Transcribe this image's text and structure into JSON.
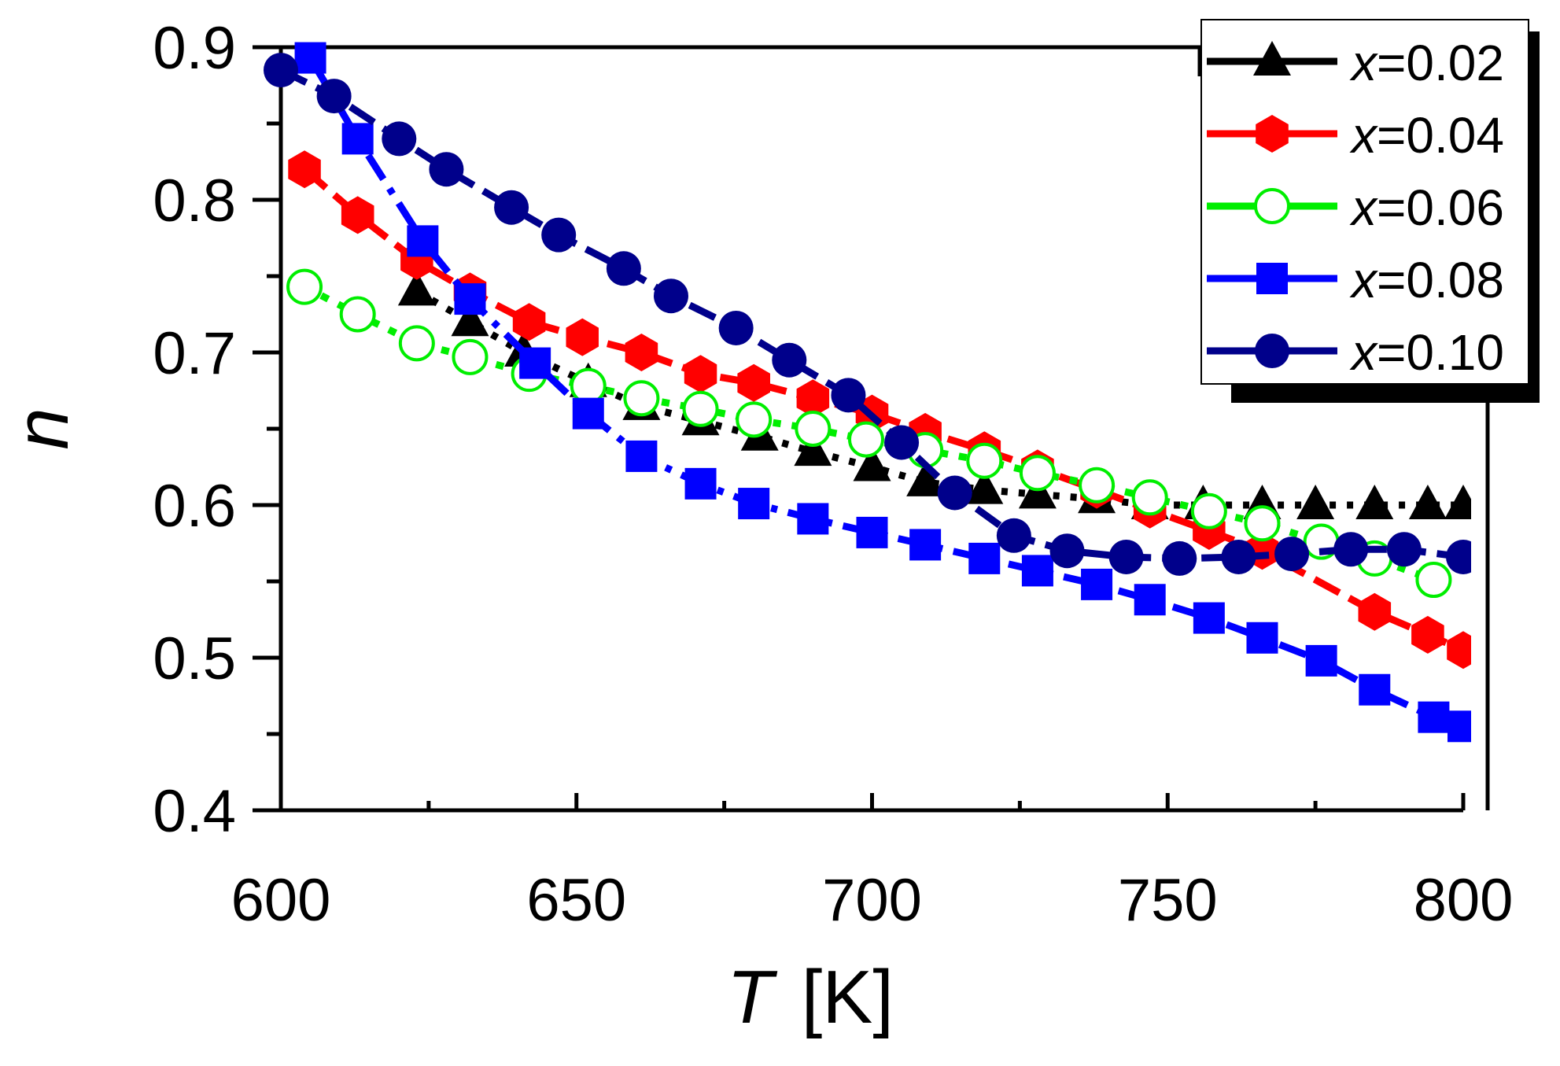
{
  "chart_data": {
    "type": "line",
    "title": "",
    "xlabel_var": "T",
    "xlabel_unit": "[K]",
    "ylabel": "n",
    "xlim": [
      600,
      800
    ],
    "ylim": [
      0.4,
      0.9
    ],
    "xticks": [
      "600",
      "650",
      "700",
      "750",
      "800"
    ],
    "yticks": [
      "0.4",
      "0.5",
      "0.6",
      "0.7",
      "0.8",
      "0.9"
    ],
    "legend_position": "top-right",
    "series": [
      {
        "name": "x=0.02",
        "var": "x",
        "value_label": "=0.02",
        "color": "#000000",
        "marker": "triangle",
        "dash": "8 14",
        "x": [
          623,
          632,
          641,
          652,
          661,
          671,
          681,
          690,
          700,
          709,
          719,
          728,
          738,
          747,
          756,
          766,
          775,
          785,
          794,
          800
        ],
        "y": [
          0.74,
          0.72,
          0.7,
          0.68,
          0.665,
          0.655,
          0.645,
          0.635,
          0.625,
          0.615,
          0.61,
          0.607,
          0.604,
          0.6,
          0.6,
          0.6,
          0.6,
          0.6,
          0.6,
          0.6
        ]
      },
      {
        "name": "x=0.04",
        "var": "x",
        "value_label": "=0.04",
        "color": "#ff0000",
        "marker": "hexagon",
        "dash": "36 14",
        "x": [
          604,
          613,
          623,
          632,
          642,
          651,
          661,
          671,
          680,
          690,
          700,
          709,
          719,
          728,
          738,
          747,
          757,
          766,
          785,
          794,
          800
        ],
        "y": [
          0.82,
          0.79,
          0.76,
          0.74,
          0.72,
          0.71,
          0.7,
          0.686,
          0.68,
          0.67,
          0.66,
          0.648,
          0.636,
          0.624,
          0.61,
          0.597,
          0.583,
          0.57,
          0.53,
          0.515,
          0.505
        ]
      },
      {
        "name": "x=0.06",
        "var": "x",
        "value_label": "=0.06",
        "color": "#00ee00",
        "marker": "open-circle",
        "dash": "10 14",
        "x": [
          604,
          613,
          623,
          632,
          642,
          652,
          661,
          671,
          680,
          690,
          699,
          709,
          719,
          728,
          738,
          747,
          757,
          766,
          776,
          785,
          795
        ],
        "y": [
          0.743,
          0.725,
          0.706,
          0.697,
          0.686,
          0.678,
          0.67,
          0.663,
          0.656,
          0.65,
          0.643,
          0.636,
          0.629,
          0.621,
          0.613,
          0.605,
          0.596,
          0.588,
          0.576,
          0.565,
          0.551
        ]
      },
      {
        "name": "x=0.08",
        "var": "x",
        "value_label": "=0.08",
        "color": "#0000ff",
        "marker": "square",
        "dash": "36 14 8 14",
        "x": [
          605,
          613,
          624,
          632,
          643,
          652,
          661,
          671,
          680,
          690,
          700,
          709,
          719,
          728,
          738,
          747,
          757,
          766,
          776,
          785,
          795,
          800
        ],
        "y": [
          0.893,
          0.84,
          0.773,
          0.735,
          0.693,
          0.66,
          0.632,
          0.614,
          0.601,
          0.591,
          0.582,
          0.574,
          0.565,
          0.557,
          0.548,
          0.538,
          0.526,
          0.513,
          0.498,
          0.479,
          0.461,
          0.455
        ]
      },
      {
        "name": "x=0.10",
        "var": "x",
        "value_label": "=0.10",
        "color": "#00008b",
        "marker": "circle",
        "dash": "36 14",
        "x": [
          600,
          609,
          620,
          628,
          639,
          647,
          658,
          666,
          677,
          686,
          696,
          705,
          714,
          724,
          733,
          743,
          752,
          762,
          771,
          781,
          790,
          800
        ],
        "y": [
          0.885,
          0.868,
          0.84,
          0.82,
          0.795,
          0.777,
          0.755,
          0.737,
          0.716,
          0.695,
          0.672,
          0.641,
          0.608,
          0.58,
          0.57,
          0.566,
          0.565,
          0.566,
          0.568,
          0.571,
          0.571,
          0.566
        ]
      }
    ]
  }
}
